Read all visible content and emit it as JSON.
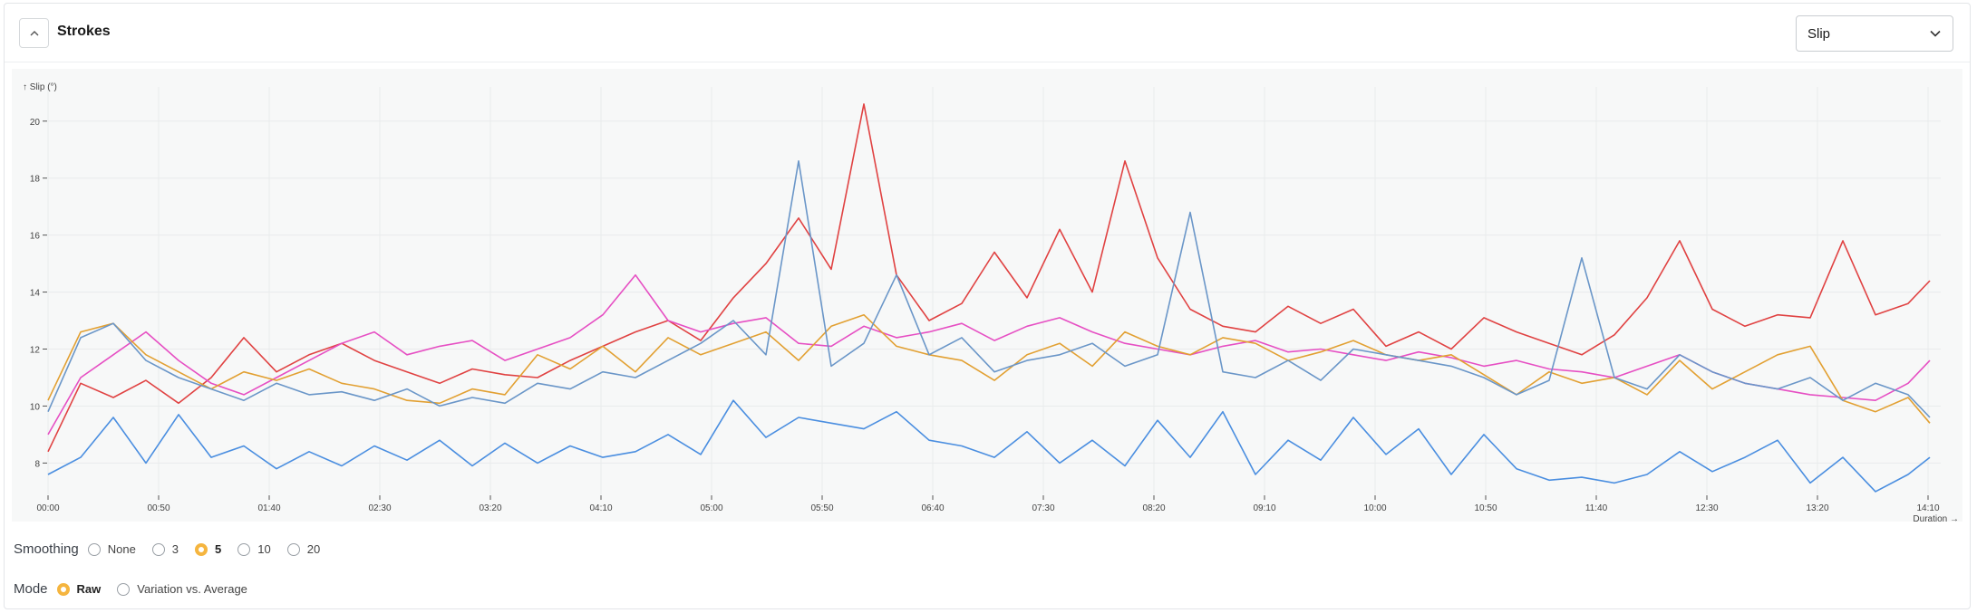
{
  "header": {
    "title": "Strokes",
    "metric_select": "Slip",
    "collapse_icon": "chevron-up-icon",
    "select_icon": "chevron-down-icon"
  },
  "controls": {
    "smoothing_label": "Smoothing",
    "smoothing_options": [
      "None",
      "3",
      "5",
      "10",
      "20"
    ],
    "smoothing_selected": "5",
    "mode_label": "Mode",
    "mode_options": [
      "Raw",
      "Variation vs. Average"
    ],
    "mode_selected": "Raw"
  },
  "colors": {
    "accent": "#f5b53f",
    "plot_bg": "#f7f8f8"
  },
  "chart_data": {
    "type": "line",
    "ylabel": "↑ Slip (°)",
    "xlabel": "Duration →",
    "x_ticks": [
      "00:00",
      "00:50",
      "01:40",
      "02:30",
      "03:20",
      "04:10",
      "05:00",
      "05:50",
      "06:40",
      "07:30",
      "08:20",
      "09:10",
      "10:00",
      "10:50",
      "11:40",
      "12:30",
      "13:20",
      "14:10"
    ],
    "y_ticks": [
      8,
      10,
      12,
      14,
      16,
      18,
      20
    ],
    "ylim": [
      6.9,
      21.2
    ],
    "xlim_seconds": [
      0,
      870
    ],
    "grid": true,
    "series": [
      {
        "color": "#e04242",
        "x": [
          0,
          15,
          30,
          45,
          60,
          75,
          90,
          105,
          120,
          135,
          150,
          165,
          180,
          195,
          210,
          225,
          240,
          255,
          270,
          285,
          300,
          315,
          330,
          345,
          360,
          375,
          390,
          405,
          420,
          435,
          450,
          465,
          480,
          495,
          510,
          525,
          540,
          555,
          570,
          585,
          600,
          615,
          630,
          645,
          660,
          675,
          690,
          705,
          720,
          735,
          750,
          765,
          780,
          795,
          810,
          825,
          840,
          855,
          865
        ],
        "y": [
          8.4,
          10.8,
          10.3,
          10.9,
          10.1,
          11.0,
          12.4,
          11.2,
          11.8,
          12.2,
          11.6,
          11.2,
          10.8,
          11.3,
          11.1,
          11.0,
          11.6,
          12.1,
          12.6,
          13.0,
          12.3,
          13.8,
          15.0,
          16.6,
          14.8,
          20.6,
          14.6,
          13.0,
          13.6,
          15.4,
          13.8,
          16.2,
          14.0,
          18.6,
          15.2,
          13.4,
          12.8,
          12.6,
          13.5,
          12.9,
          13.4,
          12.1,
          12.6,
          12.0,
          13.1,
          12.6,
          12.2,
          11.8,
          12.5,
          13.8,
          15.8,
          13.4,
          12.8,
          13.2,
          13.1,
          15.8,
          13.2,
          13.6,
          14.4
        ]
      },
      {
        "color": "#e64fc3",
        "x": [
          0,
          15,
          30,
          45,
          60,
          75,
          90,
          105,
          120,
          135,
          150,
          165,
          180,
          195,
          210,
          225,
          240,
          255,
          270,
          285,
          300,
          315,
          330,
          345,
          360,
          375,
          390,
          405,
          420,
          435,
          450,
          465,
          480,
          495,
          510,
          525,
          540,
          555,
          570,
          585,
          600,
          615,
          630,
          645,
          660,
          675,
          690,
          705,
          720,
          735,
          750,
          765,
          780,
          795,
          810,
          825,
          840,
          855,
          865
        ],
        "y": [
          9.0,
          11.0,
          11.8,
          12.6,
          11.6,
          10.8,
          10.4,
          11.0,
          11.6,
          12.2,
          12.6,
          11.8,
          12.1,
          12.3,
          11.6,
          12.0,
          12.4,
          13.2,
          14.6,
          13.0,
          12.6,
          12.9,
          13.1,
          12.2,
          12.1,
          12.8,
          12.4,
          12.6,
          12.9,
          12.3,
          12.8,
          13.1,
          12.6,
          12.2,
          12.0,
          11.8,
          12.1,
          12.3,
          11.9,
          12.0,
          11.8,
          11.6,
          11.9,
          11.7,
          11.4,
          11.6,
          11.3,
          11.2,
          11.0,
          11.4,
          11.8,
          11.2,
          10.8,
          10.6,
          10.4,
          10.3,
          10.2,
          10.8,
          11.6
        ]
      },
      {
        "color": "#e2a032",
        "x": [
          0,
          15,
          30,
          45,
          60,
          75,
          90,
          105,
          120,
          135,
          150,
          165,
          180,
          195,
          210,
          225,
          240,
          255,
          270,
          285,
          300,
          315,
          330,
          345,
          360,
          375,
          390,
          405,
          420,
          435,
          450,
          465,
          480,
          495,
          510,
          525,
          540,
          555,
          570,
          585,
          600,
          615,
          630,
          645,
          660,
          675,
          690,
          705,
          720,
          735,
          750,
          765,
          780,
          795,
          810,
          825,
          840,
          855,
          865
        ],
        "y": [
          10.2,
          12.6,
          12.9,
          11.8,
          11.2,
          10.6,
          11.2,
          10.9,
          11.3,
          10.8,
          10.6,
          10.2,
          10.1,
          10.6,
          10.4,
          11.8,
          11.3,
          12.1,
          11.2,
          12.4,
          11.8,
          12.2,
          12.6,
          11.6,
          12.8,
          13.2,
          12.1,
          11.8,
          11.6,
          10.9,
          11.8,
          12.2,
          11.4,
          12.6,
          12.1,
          11.8,
          12.4,
          12.2,
          11.6,
          11.9,
          12.3,
          11.8,
          11.6,
          11.8,
          11.1,
          10.4,
          11.2,
          10.8,
          11.0,
          10.4,
          11.6,
          10.6,
          11.2,
          11.8,
          12.1,
          10.2,
          9.8,
          10.3,
          9.4
        ]
      },
      {
        "color": "#6a96c8",
        "x": [
          0,
          15,
          30,
          45,
          60,
          75,
          90,
          105,
          120,
          135,
          150,
          165,
          180,
          195,
          210,
          225,
          240,
          255,
          270,
          285,
          300,
          315,
          330,
          345,
          360,
          375,
          390,
          405,
          420,
          435,
          450,
          465,
          480,
          495,
          510,
          525,
          540,
          555,
          570,
          585,
          600,
          615,
          630,
          645,
          660,
          675,
          690,
          705,
          720,
          735,
          750,
          765,
          780,
          795,
          810,
          825,
          840,
          855,
          865
        ],
        "y": [
          9.8,
          12.4,
          12.9,
          11.6,
          11.0,
          10.6,
          10.2,
          10.8,
          10.4,
          10.5,
          10.2,
          10.6,
          10.0,
          10.3,
          10.1,
          10.8,
          10.6,
          11.2,
          11.0,
          11.6,
          12.2,
          13.0,
          11.8,
          18.6,
          11.4,
          12.2,
          14.6,
          11.8,
          12.4,
          11.2,
          11.6,
          11.8,
          12.2,
          11.4,
          11.8,
          16.8,
          11.2,
          11.0,
          11.6,
          10.9,
          12.0,
          11.8,
          11.6,
          11.4,
          11.0,
          10.4,
          10.9,
          15.2,
          11.0,
          10.6,
          11.8,
          11.2,
          10.8,
          10.6,
          11.0,
          10.2,
          10.8,
          10.4,
          9.6
        ]
      },
      {
        "color": "#4a8ee0",
        "x": [
          0,
          15,
          30,
          45,
          60,
          75,
          90,
          105,
          120,
          135,
          150,
          165,
          180,
          195,
          210,
          225,
          240,
          255,
          270,
          285,
          300,
          315,
          330,
          345,
          360,
          375,
          390,
          405,
          420,
          435,
          450,
          465,
          480,
          495,
          510,
          525,
          540,
          555,
          570,
          585,
          600,
          615,
          630,
          645,
          660,
          675,
          690,
          705,
          720,
          735,
          750,
          765,
          780,
          795,
          810,
          825,
          840,
          855,
          865
        ],
        "y": [
          7.6,
          8.2,
          9.6,
          8.0,
          9.7,
          8.2,
          8.6,
          7.8,
          8.4,
          7.9,
          8.6,
          8.1,
          8.8,
          7.9,
          8.7,
          8.0,
          8.6,
          8.2,
          8.4,
          9.0,
          8.3,
          10.2,
          8.9,
          9.6,
          9.4,
          9.2,
          9.8,
          8.8,
          8.6,
          8.2,
          9.1,
          8.0,
          8.8,
          7.9,
          9.5,
          8.2,
          9.8,
          7.6,
          8.8,
          8.1,
          9.6,
          8.3,
          9.2,
          7.6,
          9.0,
          7.8,
          7.4,
          7.5,
          7.3,
          7.6,
          8.4,
          7.7,
          8.2,
          8.8,
          7.3,
          8.2,
          7.0,
          7.6,
          8.2
        ]
      }
    ]
  }
}
